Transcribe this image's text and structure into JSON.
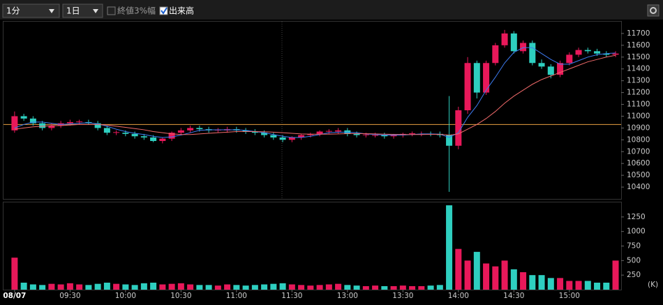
{
  "toolbar": {
    "interval": "1分",
    "range": "1日",
    "option_close_range": "終値3%幅",
    "option_volume": "出来高"
  },
  "chart_data": [
    {
      "type": "candlestick",
      "up_color": "#e8185a",
      "down_color": "#2ecfc0",
      "xlim": [
        -6,
        328
      ],
      "ylim": [
        10300,
        11800
      ],
      "yticks": [
        10400,
        10500,
        10600,
        10700,
        10800,
        10900,
        11000,
        11100,
        11200,
        11300,
        11400,
        11500,
        11600,
        11700
      ],
      "reference_value": 10930,
      "reference_color": "#e8a040",
      "x": [
        0,
        5,
        10,
        15,
        20,
        25,
        30,
        35,
        40,
        45,
        50,
        55,
        60,
        65,
        70,
        75,
        80,
        85,
        90,
        95,
        100,
        105,
        110,
        115,
        120,
        125,
        130,
        135,
        140,
        145,
        150,
        155,
        160,
        165,
        170,
        175,
        180,
        185,
        190,
        195,
        200,
        205,
        210,
        215,
        220,
        225,
        230,
        235,
        240,
        245,
        250,
        255,
        260,
        265,
        270,
        275,
        280,
        285,
        290,
        295,
        300,
        305,
        310,
        315,
        320,
        325
      ],
      "open": [
        10880,
        11000,
        10980,
        10940,
        10900,
        10920,
        10940,
        10950,
        10950,
        10940,
        10900,
        10860,
        10860,
        10850,
        10830,
        10820,
        10790,
        10810,
        10860,
        10880,
        10900,
        10890,
        10880,
        10880,
        10890,
        10880,
        10870,
        10860,
        10840,
        10820,
        10800,
        10820,
        10840,
        10850,
        10870,
        10870,
        10880,
        10850,
        10840,
        10840,
        10840,
        10830,
        10840,
        10850,
        10850,
        10850,
        10850,
        10840,
        10750,
        11050,
        11450,
        11200,
        11450,
        11600,
        11700,
        11550,
        11620,
        11450,
        11420,
        11350,
        11450,
        11520,
        11560,
        11550,
        11530,
        11520
      ],
      "high": [
        11040,
        11020,
        11000,
        10960,
        10940,
        10960,
        10970,
        10970,
        10970,
        10960,
        10920,
        10880,
        10880,
        10870,
        10850,
        10840,
        10820,
        10870,
        10900,
        10920,
        10920,
        10910,
        10900,
        10910,
        10910,
        10900,
        10890,
        10880,
        10860,
        10840,
        10830,
        10850,
        10860,
        10880,
        10890,
        10900,
        10900,
        10870,
        10860,
        10860,
        10860,
        10850,
        10860,
        10870,
        10870,
        10870,
        10870,
        11170,
        11080,
        11500,
        11470,
        11470,
        11620,
        11730,
        11720,
        11640,
        11640,
        11480,
        11440,
        11470,
        11540,
        11580,
        11580,
        11570,
        11550,
        11550
      ],
      "low": [
        10860,
        10960,
        10920,
        10880,
        10880,
        10900,
        10920,
        10930,
        10930,
        10880,
        10840,
        10840,
        10830,
        10810,
        10800,
        10780,
        10770,
        10790,
        10840,
        10860,
        10870,
        10860,
        10860,
        10860,
        10860,
        10850,
        10840,
        10820,
        10800,
        10780,
        10780,
        10800,
        10820,
        10830,
        10850,
        10850,
        10830,
        10820,
        10820,
        10820,
        10810,
        10810,
        10820,
        10830,
        10830,
        10830,
        10820,
        10360,
        10720,
        11020,
        11150,
        11180,
        11430,
        11580,
        11530,
        11530,
        11430,
        11400,
        11320,
        11330,
        11430,
        11500,
        11530,
        11510,
        11500,
        11500
      ],
      "close": [
        11000,
        10980,
        10940,
        10900,
        10920,
        10940,
        10950,
        10955,
        10940,
        10900,
        10860,
        10865,
        10850,
        10830,
        10820,
        10790,
        10810,
        10860,
        10880,
        10900,
        10890,
        10880,
        10885,
        10890,
        10880,
        10870,
        10860,
        10840,
        10820,
        10800,
        10820,
        10840,
        10850,
        10870,
        10875,
        10880,
        10850,
        10840,
        10845,
        10840,
        10830,
        10840,
        10850,
        10855,
        10850,
        10845,
        10840,
        10750,
        11050,
        11450,
        11200,
        11450,
        11600,
        11700,
        11550,
        11620,
        11450,
        11420,
        11350,
        11450,
        11520,
        11560,
        11550,
        11530,
        11520,
        11530
      ],
      "series": [
        {
          "color": "#3d7bf0",
          "values": [
            10900,
            10930,
            10950,
            10950,
            10940,
            10930,
            10935,
            10940,
            10945,
            10935,
            10915,
            10890,
            10870,
            10855,
            10845,
            10830,
            10820,
            10825,
            10840,
            10860,
            10880,
            10885,
            10885,
            10885,
            10885,
            10880,
            10870,
            10860,
            10845,
            10830,
            10820,
            10820,
            10830,
            10845,
            10860,
            10865,
            10865,
            10860,
            10850,
            10845,
            10840,
            10840,
            10840,
            10845,
            10850,
            10850,
            10848,
            10820,
            10860,
            10990,
            11090,
            11220,
            11330,
            11450,
            11540,
            11580,
            11580,
            11530,
            11480,
            11440,
            11440,
            11470,
            11500,
            11520,
            11530,
            11535
          ]
        },
        {
          "color": "#f06a6a",
          "values": [
            10890,
            10900,
            10910,
            10915,
            10920,
            10920,
            10925,
            10930,
            10930,
            10930,
            10925,
            10915,
            10905,
            10895,
            10885,
            10870,
            10860,
            10850,
            10845,
            10845,
            10850,
            10855,
            10860,
            10865,
            10870,
            10870,
            10870,
            10868,
            10865,
            10860,
            10855,
            10850,
            10848,
            10848,
            10848,
            10850,
            10852,
            10853,
            10852,
            10850,
            10848,
            10846,
            10845,
            10845,
            10845,
            10846,
            10846,
            10840,
            10850,
            10890,
            10930,
            10980,
            11040,
            11110,
            11170,
            11220,
            11270,
            11310,
            11340,
            11370,
            11400,
            11430,
            11460,
            11480,
            11500,
            11515
          ]
        }
      ]
    },
    {
      "type": "bar",
      "unit_label": "(K)",
      "xlim": [
        -6,
        328
      ],
      "ylim": [
        0,
        1500
      ],
      "yticks": [
        250,
        500,
        750,
        1000,
        1250
      ],
      "xticks": [
        {
          "value": 0,
          "label": "08/07"
        },
        {
          "value": 30,
          "label": "09:30"
        },
        {
          "value": 60,
          "label": "10:00"
        },
        {
          "value": 90,
          "label": "10:30"
        },
        {
          "value": 120,
          "label": "11:00"
        },
        {
          "value": 150,
          "label": "11:30"
        },
        {
          "value": 180,
          "label": "13:00"
        },
        {
          "value": 210,
          "label": "13:30"
        },
        {
          "value": 240,
          "label": "14:00"
        },
        {
          "value": 270,
          "label": "14:30"
        },
        {
          "value": 300,
          "label": "15:00"
        }
      ],
      "x": [
        0,
        5,
        10,
        15,
        20,
        25,
        30,
        35,
        40,
        45,
        50,
        55,
        60,
        65,
        70,
        75,
        80,
        85,
        90,
        95,
        100,
        105,
        110,
        115,
        120,
        125,
        130,
        135,
        140,
        145,
        150,
        155,
        160,
        165,
        170,
        175,
        180,
        185,
        190,
        195,
        200,
        205,
        210,
        215,
        220,
        225,
        230,
        235,
        240,
        245,
        250,
        255,
        260,
        265,
        270,
        275,
        280,
        285,
        290,
        295,
        300,
        305,
        310,
        315,
        320,
        325
      ],
      "values": [
        550,
        120,
        90,
        80,
        100,
        90,
        110,
        90,
        80,
        100,
        120,
        100,
        90,
        80,
        110,
        120,
        90,
        100,
        110,
        90,
        80,
        80,
        70,
        90,
        80,
        70,
        80,
        90,
        100,
        110,
        90,
        80,
        70,
        80,
        90,
        100,
        80,
        70,
        60,
        70,
        60,
        60,
        70,
        60,
        60,
        70,
        80,
        1450,
        700,
        500,
        650,
        450,
        400,
        500,
        350,
        300,
        250,
        250,
        200,
        200,
        150,
        150,
        150,
        120,
        120,
        500
      ]
    }
  ]
}
